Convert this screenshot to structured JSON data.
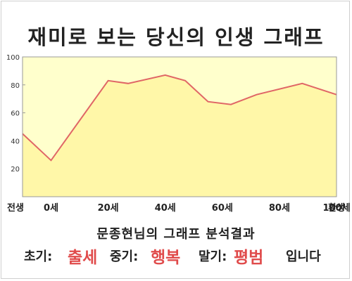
{
  "chart_data": {
    "type": "area",
    "title": "재미로 보는 당신의 인생 그래프",
    "xlabel": "",
    "ylabel": "",
    "x": [
      -10,
      0,
      20,
      27,
      40,
      47,
      55,
      63,
      72,
      88,
      100
    ],
    "values": [
      45,
      26,
      83,
      81,
      87,
      83,
      68,
      66,
      73,
      81,
      73
    ],
    "ylim": [
      0,
      100
    ],
    "xlim": [
      -10,
      100
    ],
    "y_ticks": [
      20,
      40,
      60,
      80,
      100
    ],
    "x_ticks": [
      {
        "value": -10,
        "label": "전생"
      },
      {
        "value": 0,
        "label": "0세"
      },
      {
        "value": 20,
        "label": "20세"
      },
      {
        "value": 40,
        "label": "40세"
      },
      {
        "value": 60,
        "label": "60세"
      },
      {
        "value": 80,
        "label": "80세"
      },
      {
        "value": 100,
        "label": "100세"
      },
      {
        "value": 110,
        "label": "환생"
      }
    ],
    "grid": false,
    "line_color": "#e06666",
    "fill_color": "#ffffcc"
  },
  "result": {
    "title": "문종현님의 그래프 분석결과",
    "early_label": "초기:",
    "early_value": "출세",
    "middle_label": "중기:",
    "middle_value": "행복",
    "late_label": "말기:",
    "late_value": "평범",
    "suffix": "입니다"
  }
}
